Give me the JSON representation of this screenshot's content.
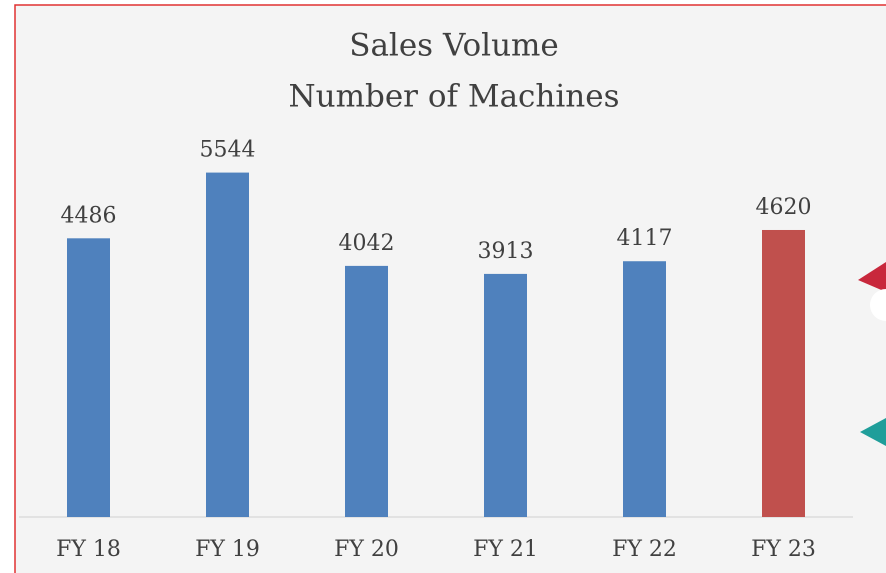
{
  "chart_data": {
    "type": "bar",
    "title": [
      "Sales Volume",
      "Number of Machines"
    ],
    "categories": [
      "FY 18",
      "FY 19",
      "FY 20",
      "FY 21",
      "FY 22",
      "FY 23"
    ],
    "values": [
      4486,
      5544,
      4042,
      3913,
      4117,
      4620
    ],
    "colors": [
      "#4f81bd",
      "#4f81bd",
      "#4f81bd",
      "#4f81bd",
      "#4f81bd",
      "#c0504d"
    ],
    "ylim": [
      0,
      8000
    ]
  }
}
